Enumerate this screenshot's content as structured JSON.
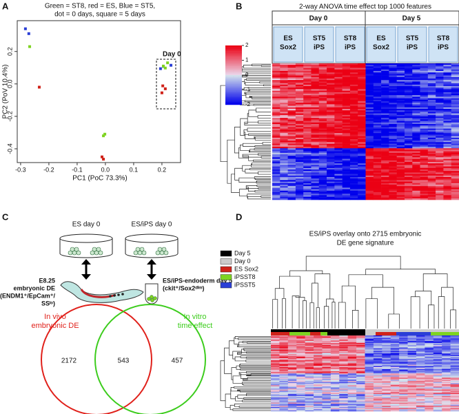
{
  "panel_labels": [
    "A",
    "B",
    "C",
    "D"
  ],
  "chart_data": [
    {
      "type": "scatter",
      "title": [
        "Green = ST8, red = ES, Blue = ST5,",
        "dot = 0 days, square = 5 days"
      ],
      "xlabel": "PC1 (PoC 73.3%)",
      "ylabel": "PC2 (PoV 10.4%)",
      "annotation": "Day 0",
      "xlim": [
        -0.312,
        0.266
      ],
      "ylim": [
        -0.485,
        0.39
      ],
      "xticks": [
        -0.3,
        -0.2,
        -0.1,
        {
          "value": 0,
          "label": "0.0"
        },
        0.1,
        0.2
      ],
      "yticks": [
        -0.4,
        -0.2,
        {
          "value": 0,
          "label": "0.0"
        },
        0.2
      ],
      "series": [
        {
          "color": "#2b3fd6",
          "x": [
            -0.283,
            -0.271,
            0.195,
            0.232,
            0.205
          ],
          "y": [
            0.34,
            0.31,
            0.094,
            0.115,
            0.108
          ]
        },
        {
          "color": "#7ed321",
          "x": [
            -0.268,
            0.212,
            0.22,
            0.205,
            -0.007,
            -0.002
          ],
          "y": [
            0.23,
            0.098,
            0.13,
            0.11,
            -0.32,
            -0.31
          ]
        },
        {
          "color": "#d0231a",
          "x": [
            -0.234,
            0.2,
            0.212,
            0.203,
            -0.012,
            -0.007
          ],
          "y": [
            -0.02,
            -0.055,
            -0.03,
            -0.012,
            -0.45,
            -0.464
          ]
        }
      ]
    }
  ],
  "heatmap_b": {
    "title": "2-way ANOVA time effect top 1000 features",
    "days": [
      "Day 0",
      "Day 5"
    ],
    "groups": [
      [
        "ES",
        "Sox2"
      ],
      [
        "ST5",
        "iPS"
      ],
      [
        "ST8",
        "iPS"
      ],
      [
        "ES",
        "Sox2"
      ],
      [
        "ST5",
        "iPS"
      ],
      [
        "ST8",
        "iPS"
      ]
    ],
    "scale_ticks": [
      2,
      1,
      0,
      -1,
      -2
    ]
  },
  "diagram_c": {
    "conditions": [
      "ES day 0",
      "ES/iPS day 0"
    ],
    "in_vivo_label": [
      "E8.25",
      "embryonic DE",
      "(ENDM1⁺/EpCam⁺/",
      "SSˡᵒ)"
    ],
    "in_vitro_label": [
      "ES/iPS-endoderm day 5",
      "(ckit⁺/Sox2ᵈⁱᵐ)"
    ],
    "venn": {
      "left_title": [
        "In vivo",
        "embryonic DE"
      ],
      "right_title": [
        "In vitro",
        "time effect"
      ],
      "left_only": "2172",
      "overlap": "543",
      "right_only": "457"
    }
  },
  "heatmap_d": {
    "title": [
      "ES/iPS overlay onto 2715 embryonic",
      "DE gene signature"
    ],
    "legend": [
      {
        "label": "Day 5",
        "color": "#000000"
      },
      {
        "label": "Day 0",
        "color": "#cccccc"
      },
      {
        "label": "ES Sox2",
        "color": "#d0231a"
      },
      {
        "label": "iPSST8",
        "color": "#7ed321"
      },
      {
        "label": "iPSST5",
        "color": "#2b3fd6"
      }
    ]
  }
}
